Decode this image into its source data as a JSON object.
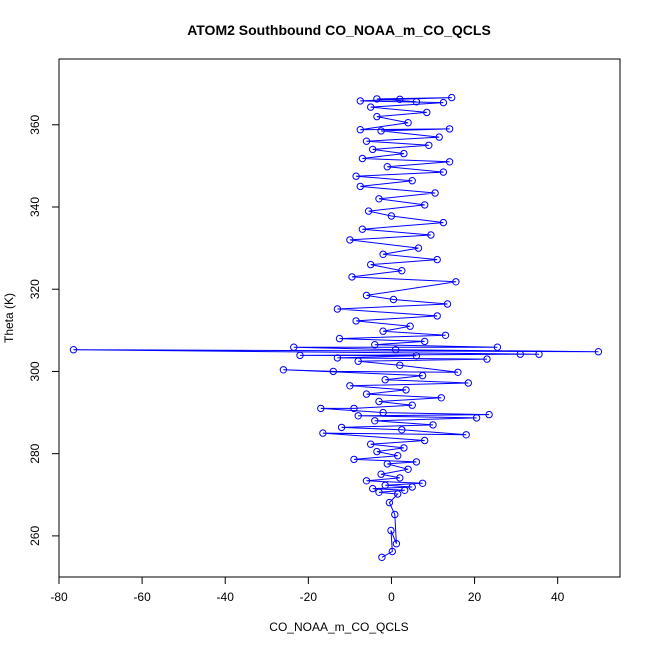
{
  "chart_data": {
    "type": "scatter",
    "title": "ATOM2 Southbound CO_NOAA_m_CO_QCLS",
    "xlabel": "CO_NOAA_m_CO_QCLS",
    "ylabel": "Theta (K)",
    "xlim": [
      -80,
      55
    ],
    "ylim": [
      250,
      376
    ],
    "xticks": [
      -80,
      -60,
      -40,
      -20,
      0,
      20,
      40
    ],
    "yticks": [
      260,
      280,
      300,
      320,
      340,
      360
    ],
    "grid": false,
    "marker": "open-circle",
    "connected": true,
    "series_color": "#0000ff",
    "series": [
      {
        "points": [
          [
            -2.3,
            254.8
          ],
          [
            0.2,
            256.2
          ],
          [
            -0.1,
            261.3
          ],
          [
            1.2,
            258.1
          ],
          [
            0.8,
            265.2
          ],
          [
            -0.5,
            268.1
          ],
          [
            1.5,
            270.2
          ],
          [
            -3.0,
            270.6
          ],
          [
            3.2,
            271.1
          ],
          [
            -4.5,
            271.5
          ],
          [
            5.0,
            271.9
          ],
          [
            -1.5,
            272.3
          ],
          [
            7.5,
            272.8
          ],
          [
            -6.0,
            273.4
          ],
          [
            2.0,
            274.1
          ],
          [
            -2.5,
            275.0
          ],
          [
            4.0,
            276.2
          ],
          [
            -1.0,
            277.5
          ],
          [
            6.0,
            278.0
          ],
          [
            -9.0,
            278.6
          ],
          [
            1.5,
            279.5
          ],
          [
            -3.5,
            280.5
          ],
          [
            3.0,
            281.4
          ],
          [
            -5.0,
            282.3
          ],
          [
            8.0,
            283.2
          ],
          [
            -16.5,
            285.0
          ],
          [
            18.0,
            284.6
          ],
          [
            2.5,
            285.8
          ],
          [
            -12.0,
            286.4
          ],
          [
            10.0,
            287.0
          ],
          [
            -4.0,
            288.0
          ],
          [
            20.5,
            288.7
          ],
          [
            -8.0,
            289.2
          ],
          [
            23.5,
            289.5
          ],
          [
            -2.0,
            290.0
          ],
          [
            -17.0,
            291.0
          ],
          [
            -9.0,
            291.0
          ],
          [
            5.0,
            291.8
          ],
          [
            -3.0,
            292.7
          ],
          [
            12.0,
            293.6
          ],
          [
            -6.0,
            294.5
          ],
          [
            3.5,
            295.5
          ],
          [
            -10.0,
            296.5
          ],
          [
            18.5,
            297.2
          ],
          [
            -1.5,
            298.0
          ],
          [
            7.5,
            299.0
          ],
          [
            -26.0,
            300.4
          ],
          [
            -14.0,
            300.0
          ],
          [
            16.0,
            299.8
          ],
          [
            2.0,
            301.5
          ],
          [
            -8.0,
            302.5
          ],
          [
            23.0,
            303.0
          ],
          [
            -13.0,
            303.3
          ],
          [
            6.0,
            303.8
          ],
          [
            -22.0,
            303.9
          ],
          [
            31.0,
            304.2
          ],
          [
            35.5,
            304.2
          ],
          [
            -76.5,
            305.3
          ],
          [
            49.8,
            304.8
          ],
          [
            1.0,
            305.3
          ],
          [
            -23.5,
            305.9
          ],
          [
            25.5,
            305.9
          ],
          [
            -4.0,
            306.5
          ],
          [
            8.0,
            307.3
          ],
          [
            -12.5,
            308.0
          ],
          [
            13.0,
            308.8
          ],
          [
            -2.0,
            309.8
          ],
          [
            4.5,
            311.0
          ],
          [
            -8.5,
            312.3
          ],
          [
            11.0,
            313.5
          ],
          [
            -13.0,
            315.2
          ],
          [
            13.5,
            316.4
          ],
          [
            0.5,
            317.5
          ],
          [
            -6.0,
            318.5
          ],
          [
            15.5,
            321.8
          ],
          [
            -9.5,
            323.0
          ],
          [
            2.5,
            324.5
          ],
          [
            -5.0,
            326.0
          ],
          [
            11.0,
            327.2
          ],
          [
            -2.0,
            328.5
          ],
          [
            6.5,
            330.0
          ],
          [
            -10.0,
            332.0
          ],
          [
            9.5,
            333.2
          ],
          [
            -7.0,
            334.6
          ],
          [
            12.5,
            336.2
          ],
          [
            0.0,
            337.8
          ],
          [
            -5.5,
            339.0
          ],
          [
            8.0,
            340.5
          ],
          [
            -3.0,
            342.0
          ],
          [
            10.5,
            343.4
          ],
          [
            -7.5,
            345.0
          ],
          [
            5.0,
            346.4
          ],
          [
            -8.5,
            347.5
          ],
          [
            12.5,
            348.5
          ],
          [
            -1.0,
            349.8
          ],
          [
            14.0,
            351.0
          ],
          [
            -7.0,
            351.8
          ],
          [
            3.0,
            353.0
          ],
          [
            -4.5,
            354.0
          ],
          [
            9.0,
            355.0
          ],
          [
            -6.0,
            356.0
          ],
          [
            11.5,
            357.0
          ],
          [
            -2.5,
            358.5
          ],
          [
            14.0,
            359.0
          ],
          [
            -7.5,
            358.8
          ],
          [
            4.0,
            360.5
          ],
          [
            -3.5,
            362.0
          ],
          [
            8.5,
            363.0
          ],
          [
            -5.0,
            364.3
          ],
          [
            12.5,
            365.4
          ],
          [
            -7.5,
            365.8
          ],
          [
            2.0,
            366.2
          ],
          [
            14.5,
            366.6
          ],
          [
            -3.5,
            366.3
          ],
          [
            6.0,
            365.6
          ]
        ]
      }
    ]
  }
}
